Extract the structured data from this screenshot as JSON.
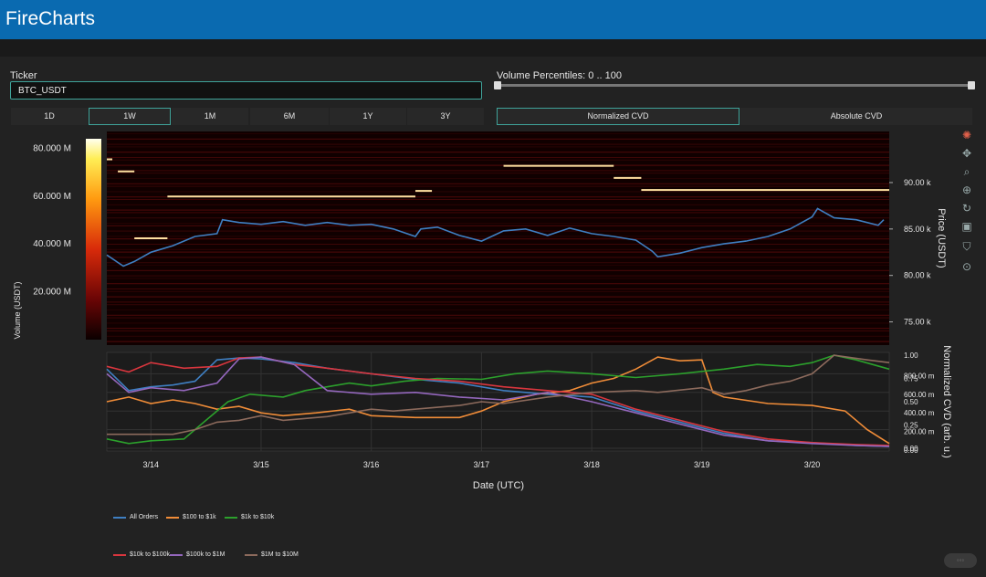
{
  "app": {
    "title": "FireCharts"
  },
  "ticker": {
    "label": "Ticker",
    "value": "BTC_USDT"
  },
  "volume_percentiles": {
    "label": "Volume Percentiles: 0 .. 100",
    "low": 0,
    "high": 100
  },
  "time_ranges": [
    {
      "label": "1D",
      "active": false
    },
    {
      "label": "1W",
      "active": true
    },
    {
      "label": "1M",
      "active": false
    },
    {
      "label": "6M",
      "active": false
    },
    {
      "label": "1Y",
      "active": false
    },
    {
      "label": "3Y",
      "active": false
    }
  ],
  "cvd_modes": [
    {
      "label": "Normalized CVD",
      "active": true
    },
    {
      "label": "Absolute CVD",
      "active": false
    }
  ],
  "modebar_icons": [
    "plotly-logo-icon",
    "pan-icon",
    "zoom-icon",
    "zoom-in-out-icon",
    "reset-icon",
    "download-icon",
    "hover-compare-icon",
    "crosshair-icon"
  ],
  "colors": {
    "accent": "#3fa39a",
    "header": "#0a6ab0",
    "background": "#222222",
    "price_line": "#3f7fc2"
  },
  "chart_data": [
    {
      "type": "heatmap",
      "ylabel": "Price (USDT)",
      "colorbar_label": "Volume (USDT)",
      "colorbar_ticks": [
        "80.000 M",
        "60.000 M",
        "40.000 M",
        "20.000 M"
      ],
      "colorbar_values": [
        80000000,
        60000000,
        40000000,
        20000000
      ],
      "y_ticks": [
        "90.00 k",
        "85.00 k",
        "80.00 k",
        "75.00 k"
      ],
      "y_tick_values": [
        90000,
        85000,
        80000,
        75000
      ],
      "ylim": [
        72500,
        95500
      ],
      "x_range": [
        13.6,
        20.7
      ],
      "price_series": {
        "x": [
          13.6,
          13.75,
          13.85,
          14.0,
          14.2,
          14.4,
          14.6,
          14.65,
          14.8,
          15.0,
          15.2,
          15.4,
          15.6,
          15.8,
          16.0,
          16.2,
          16.4,
          16.45,
          16.6,
          16.8,
          17.0,
          17.2,
          17.4,
          17.6,
          17.8,
          18.0,
          18.2,
          18.4,
          18.55,
          18.6,
          18.8,
          19.0,
          19.2,
          19.4,
          19.6,
          19.8,
          20.0,
          20.05,
          20.2,
          20.4,
          20.6,
          20.65
        ],
        "y": [
          82200,
          81000,
          81500,
          82500,
          83200,
          84200,
          84500,
          86000,
          85700,
          85500,
          85800,
          85400,
          85700,
          85400,
          85500,
          85000,
          84200,
          85000,
          85200,
          84300,
          83700,
          84800,
          85000,
          84300,
          85100,
          84500,
          84200,
          83800,
          82600,
          82000,
          82400,
          83000,
          83400,
          83700,
          84200,
          85000,
          86300,
          87200,
          86200,
          86000,
          85400,
          86000
        ]
      },
      "orderbook_levels": [
        {
          "x0": 13.6,
          "x1": 13.65,
          "y": 92500
        },
        {
          "x0": 13.7,
          "x1": 13.85,
          "y": 91200
        },
        {
          "x0": 13.85,
          "x1": 14.15,
          "y": 84000
        },
        {
          "x0": 14.15,
          "x1": 16.4,
          "y": 88500
        },
        {
          "x0": 16.4,
          "x1": 16.55,
          "y": 89100
        },
        {
          "x0": 17.2,
          "x1": 18.2,
          "y": 91800
        },
        {
          "x0": 18.2,
          "x1": 18.45,
          "y": 90500
        },
        {
          "x0": 18.45,
          "x1": 20.7,
          "y": 89200
        }
      ]
    },
    {
      "type": "line",
      "xlabel": "Date (UTC)",
      "ylabel": "Normalized CVD (arb. u.)",
      "x_ticks": [
        "3/14",
        "3/15",
        "3/16",
        "3/17",
        "3/18",
        "3/19",
        "3/20"
      ],
      "x_tick_values": [
        14,
        15,
        16,
        17,
        18,
        19,
        20
      ],
      "left_ticks": [
        "1.00",
        "0.75",
        "0.50",
        "0.25",
        "0.00"
      ],
      "left_tick_values": [
        1.0,
        0.75,
        0.5,
        0.25,
        0.0
      ],
      "right_ticks": [
        "800.00 m",
        "600.00 m",
        "400.00 m",
        "200.00 m",
        "0.00"
      ],
      "right_tick_values": [
        0.8,
        0.6,
        0.4,
        0.2,
        0.0
      ],
      "ylim": [
        -0.03,
        1.03
      ],
      "x_range": [
        13.6,
        20.7
      ],
      "series": [
        {
          "name": "All Orders",
          "color": "#3f7fc2",
          "x": [
            13.6,
            13.8,
            14.0,
            14.2,
            14.4,
            14.6,
            14.8,
            15.0,
            15.3,
            15.6,
            16.0,
            16.4,
            16.8,
            17.2,
            17.6,
            18.0,
            18.4,
            18.8,
            19.2,
            19.6,
            20.0,
            20.4,
            20.7
          ],
          "y": [
            0.85,
            0.62,
            0.66,
            0.68,
            0.72,
            0.95,
            0.97,
            0.96,
            0.92,
            0.86,
            0.8,
            0.74,
            0.7,
            0.62,
            0.58,
            0.55,
            0.4,
            0.28,
            0.16,
            0.08,
            0.06,
            0.03,
            0.02
          ]
        },
        {
          "name": "$100 to $1k",
          "color": "#f08c38",
          "x": [
            13.6,
            13.8,
            14.0,
            14.2,
            14.4,
            14.6,
            14.8,
            15.0,
            15.2,
            15.5,
            15.8,
            16.0,
            16.4,
            16.8,
            17.0,
            17.2,
            17.5,
            17.8,
            18.0,
            18.2,
            18.4,
            18.6,
            18.8,
            19.0,
            19.1,
            19.2,
            19.6,
            20.0,
            20.3,
            20.5,
            20.7
          ],
          "y": [
            0.5,
            0.55,
            0.48,
            0.52,
            0.48,
            0.42,
            0.45,
            0.38,
            0.35,
            0.38,
            0.42,
            0.35,
            0.33,
            0.33,
            0.4,
            0.5,
            0.58,
            0.62,
            0.7,
            0.75,
            0.85,
            0.98,
            0.94,
            0.95,
            0.6,
            0.55,
            0.48,
            0.46,
            0.4,
            0.2,
            0.05
          ]
        },
        {
          "name": "$1k to $10k",
          "color": "#2ca02c",
          "x": [
            13.6,
            13.8,
            14.0,
            14.3,
            14.5,
            14.7,
            14.9,
            15.2,
            15.4,
            15.6,
            15.8,
            16.0,
            16.3,
            16.6,
            17.0,
            17.3,
            17.6,
            18.0,
            18.4,
            18.8,
            19.2,
            19.5,
            19.8,
            20.0,
            20.2,
            20.4,
            20.7
          ],
          "y": [
            0.1,
            0.05,
            0.08,
            0.1,
            0.3,
            0.5,
            0.58,
            0.55,
            0.62,
            0.66,
            0.7,
            0.67,
            0.72,
            0.75,
            0.74,
            0.8,
            0.83,
            0.8,
            0.76,
            0.8,
            0.85,
            0.9,
            0.88,
            0.92,
            1.0,
            0.95,
            0.85
          ]
        },
        {
          "name": "$10k to $100k",
          "color": "#d9363e",
          "x": [
            13.6,
            13.8,
            14.0,
            14.3,
            14.6,
            14.8,
            15.0,
            15.3,
            15.6,
            16.0,
            16.4,
            16.8,
            17.2,
            17.6,
            18.0,
            18.4,
            18.8,
            19.2,
            19.6,
            20.0,
            20.4,
            20.7
          ],
          "y": [
            0.88,
            0.82,
            0.92,
            0.86,
            0.88,
            0.97,
            0.98,
            0.9,
            0.86,
            0.8,
            0.75,
            0.72,
            0.66,
            0.62,
            0.58,
            0.42,
            0.3,
            0.18,
            0.1,
            0.06,
            0.04,
            0.03
          ]
        },
        {
          "name": "$100k to $1M",
          "color": "#9467bd",
          "x": [
            13.6,
            13.8,
            14.0,
            14.3,
            14.6,
            14.8,
            15.0,
            15.3,
            15.6,
            16.0,
            16.4,
            16.8,
            17.2,
            17.6,
            18.0,
            18.4,
            18.8,
            19.2,
            19.6,
            20.0,
            20.4,
            20.7
          ],
          "y": [
            0.8,
            0.6,
            0.65,
            0.62,
            0.7,
            0.96,
            0.98,
            0.9,
            0.62,
            0.58,
            0.6,
            0.55,
            0.52,
            0.6,
            0.5,
            0.38,
            0.26,
            0.14,
            0.08,
            0.05,
            0.03,
            0.02
          ]
        },
        {
          "name": "$1M to $10M",
          "color": "#8c6a5c",
          "x": [
            13.6,
            14.2,
            14.4,
            14.6,
            14.8,
            15.0,
            15.2,
            15.6,
            16.0,
            16.2,
            16.8,
            17.0,
            17.2,
            17.6,
            18.0,
            18.4,
            18.6,
            19.0,
            19.2,
            19.4,
            19.6,
            19.8,
            20.0,
            20.2,
            20.5,
            20.7
          ],
          "y": [
            0.15,
            0.15,
            0.2,
            0.28,
            0.3,
            0.35,
            0.3,
            0.34,
            0.42,
            0.4,
            0.46,
            0.5,
            0.48,
            0.55,
            0.6,
            0.62,
            0.6,
            0.65,
            0.58,
            0.62,
            0.68,
            0.72,
            0.8,
            1.0,
            0.95,
            0.92
          ]
        }
      ]
    }
  ]
}
